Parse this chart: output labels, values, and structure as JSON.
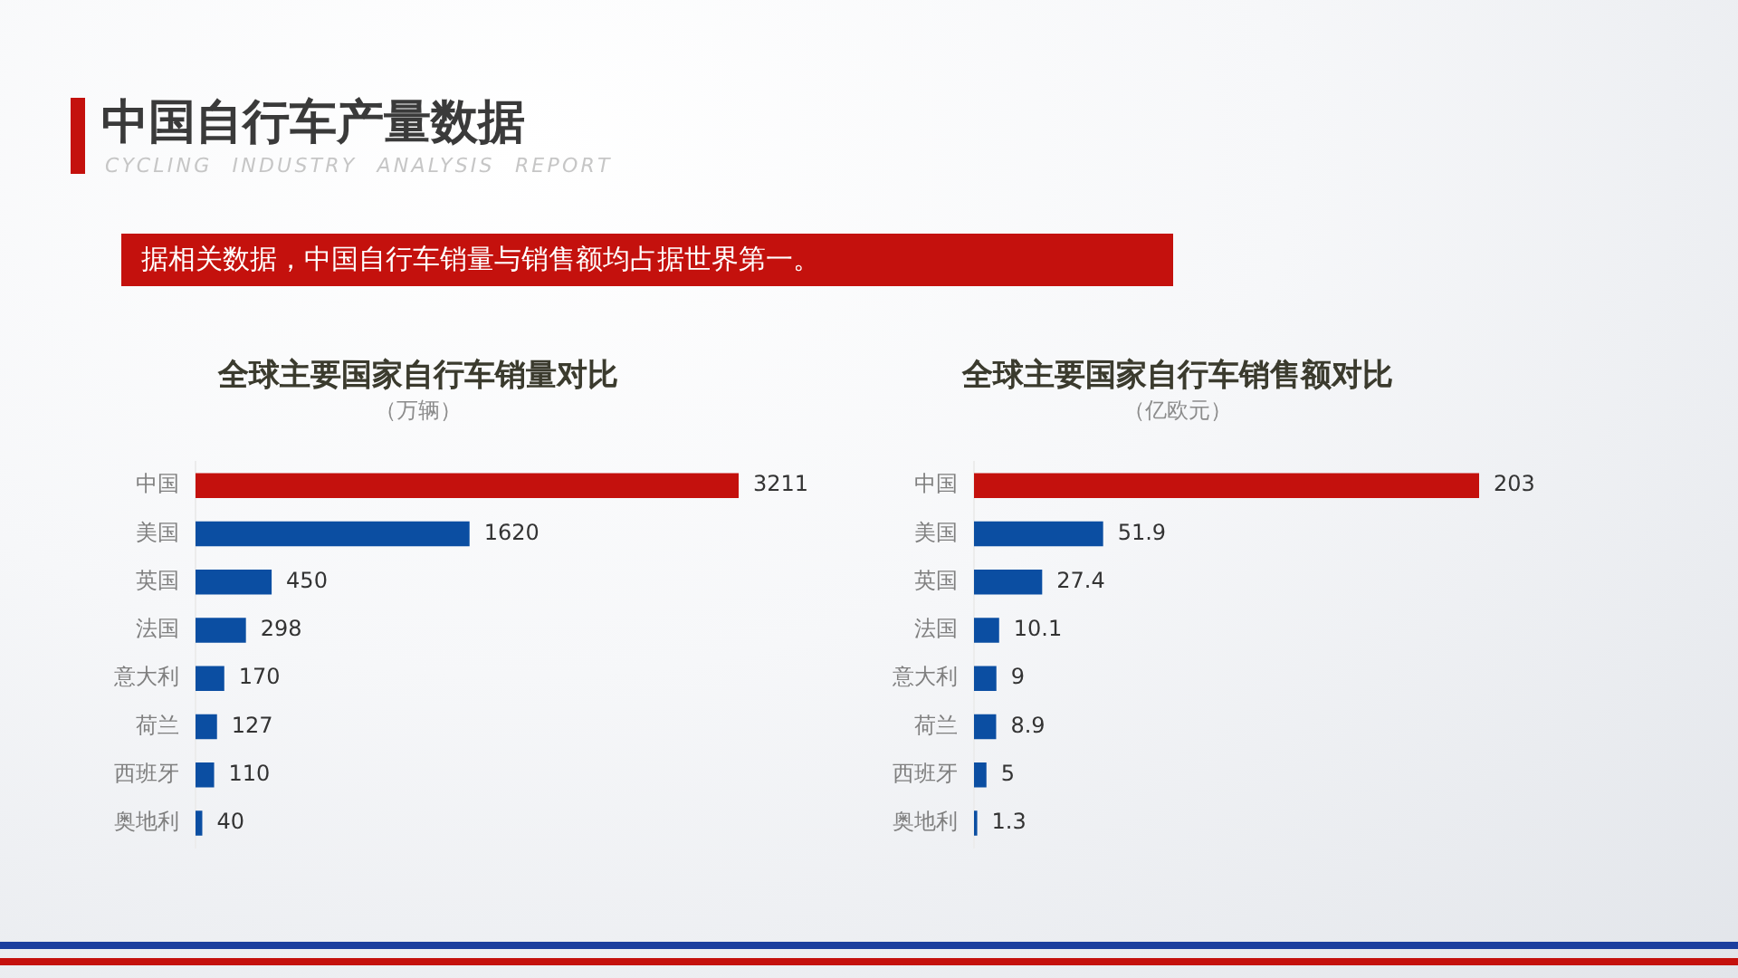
{
  "chart_data": [
    {
      "type": "other",
      "title": "中国自行车产量数据",
      "subtitle": "CYCLING INDUSTRY ANALYSIS REPORT",
      "annotations": [
        "据相关数据，中国自行车销量与销售额均占据世界第一。"
      ]
    },
    {
      "type": "bar",
      "orientation": "horizontal",
      "title": "全球主要国家自行车销量对比",
      "subtitle": "（万辆）",
      "categories": [
        "中国",
        "美国",
        "英国",
        "法国",
        "意大利",
        "荷兰",
        "西班牙",
        "奥地利"
      ],
      "values": [
        3211,
        1620,
        450,
        298,
        170,
        127,
        110,
        40
      ],
      "colors": [
        "#c4110d",
        "#0b4ea2",
        "#0b4ea2",
        "#0b4ea2",
        "#0b4ea2",
        "#0b4ea2",
        "#0b4ea2",
        "#0b4ea2"
      ],
      "data_labels": true,
      "tick_labels": "y"
    },
    {
      "type": "bar",
      "orientation": "horizontal",
      "title": "全球主要国家自行车销售额对比",
      "subtitle": "（亿欧元）",
      "categories": [
        "中国",
        "美国",
        "英国",
        "法国",
        "意大利",
        "荷兰",
        "西班牙",
        "奥地利"
      ],
      "values": [
        203,
        51.9,
        27.4,
        10.1,
        9,
        8.9,
        5,
        1.3
      ],
      "colors": [
        "#c4110d",
        "#0b4ea2",
        "#0b4ea2",
        "#0b4ea2",
        "#0b4ea2",
        "#0b4ea2",
        "#0b4ea2",
        "#0b4ea2"
      ],
      "data_labels": true,
      "tick_labels": "y"
    }
  ]
}
